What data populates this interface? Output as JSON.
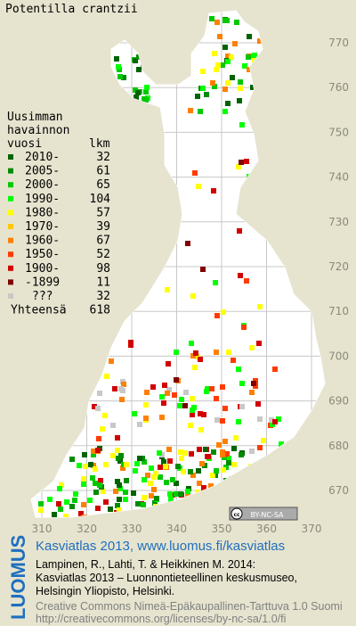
{
  "header": {
    "title": "Potentilla crantzii"
  },
  "legend": {
    "heading": [
      "Uusimman",
      "havainnon"
    ],
    "col_year": "vuosi",
    "col_count": "lkm",
    "rows": [
      {
        "label": "2010-",
        "count": 32,
        "color": "#006400"
      },
      {
        "label": "2005-",
        "count": 61,
        "color": "#008c00"
      },
      {
        "label": "2000-",
        "count": 65,
        "color": "#00c800"
      },
      {
        "label": "1990-",
        "count": 104,
        "color": "#00ff00"
      },
      {
        "label": "1980-",
        "count": 57,
        "color": "#ffff00"
      },
      {
        "label": "1970-",
        "count": 39,
        "color": "#ffc800"
      },
      {
        "label": "1960-",
        "count": 67,
        "color": "#ff8000"
      },
      {
        "label": "1950-",
        "count": 52,
        "color": "#ff3c00"
      },
      {
        "label": "1900-",
        "count": 98,
        "color": "#d20000"
      },
      {
        "label": "-1899",
        "count": 11,
        "color": "#800000"
      },
      {
        "label": "???",
        "count": 32,
        "color": "#c8c8c8"
      }
    ],
    "total": {
      "label": "Yhteensä",
      "count": 618
    }
  },
  "map": {
    "y_labels": [
      770,
      760,
      750,
      740,
      730,
      720,
      710,
      700,
      690,
      680,
      670
    ],
    "x_labels": [
      310,
      320,
      330,
      340,
      350,
      360,
      370
    ],
    "badge_icon": "cc",
    "badge": "BY-NC-SA"
  },
  "footer": {
    "logo": "LUOMUS",
    "link": "Kasviatlas 2013, www.luomus.fi/kasviatlas",
    "citation": [
      "Lampinen, R., Lahti, T. & Heikkinen M. 2014:",
      "Kasviatlas 2013 – Luonnontieteellinen keskusmuseo,",
      "Helsingin Yliopisto, Helsinki."
    ],
    "license": [
      "Creative Commons Nimeä-Epäkaupallinen-Tarttuva 1.0 Suomi",
      "http://creativecommons.org/licenses/by-nc-sa/1.0/fi"
    ]
  }
}
